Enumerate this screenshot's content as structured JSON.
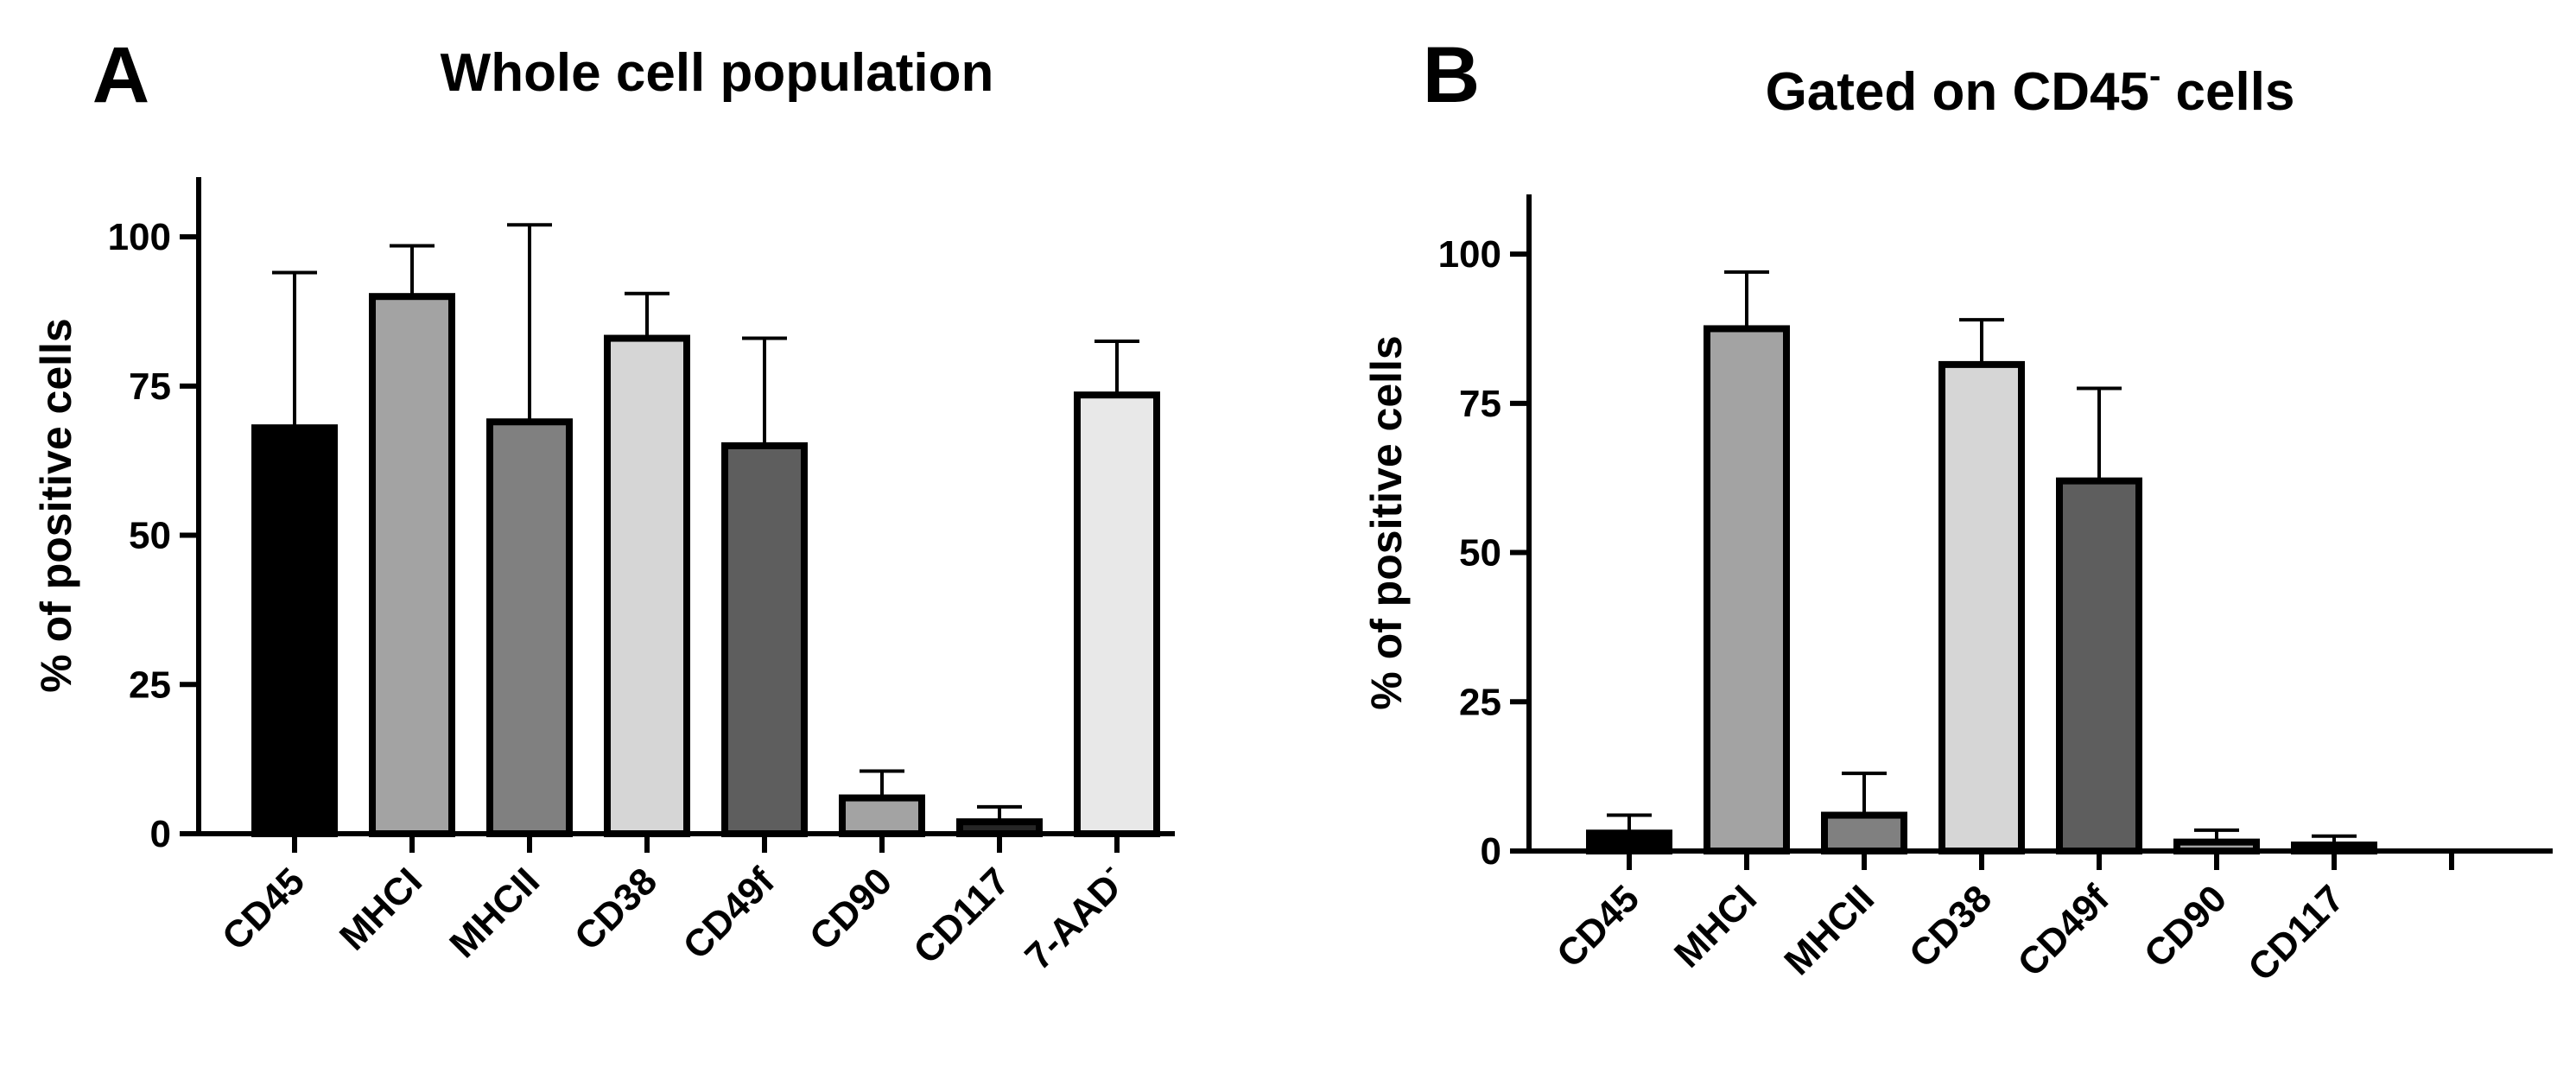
{
  "chart_data": [
    {
      "type": "bar",
      "panel_label": "A",
      "title": "Whole cell population",
      "xlabel": "",
      "ylabel": "% of positive cells",
      "ylim": [
        0,
        110
      ],
      "yticks": [
        "0",
        "25",
        "50",
        "75",
        "100"
      ],
      "categories": [
        "CD45",
        "MHCI",
        "MHCII",
        "CD38",
        "CD49f",
        "CD90",
        "CD117",
        "7-AAD"
      ],
      "category_superscripts": [
        "",
        "",
        "",
        "",
        "",
        "",
        "",
        "-"
      ],
      "values": [
        68,
        90,
        69,
        83,
        65,
        6,
        2,
        73.5
      ],
      "error_upper": [
        94,
        98.5,
        102,
        90.5,
        83,
        10.5,
        4.5,
        82.5
      ],
      "bar_colors": [
        "#000000",
        "#a3a3a3",
        "#808080",
        "#d6d6d6",
        "#5e5e5e",
        "#a3a3a3",
        "#262626",
        "#e8e8e8"
      ],
      "grid": false
    },
    {
      "type": "bar",
      "panel_label": "B",
      "title": "Gated on CD45",
      "title_superscript": "-",
      "title_suffix": " cells",
      "xlabel": "",
      "ylabel": "% of positive cells",
      "ylim": [
        0,
        110
      ],
      "yticks": [
        "0",
        "25",
        "50",
        "75",
        "100"
      ],
      "categories": [
        "CD45",
        "MHCI",
        "MHCII",
        "CD38",
        "CD49f",
        "CD90",
        "CD117"
      ],
      "category_superscripts": [
        "",
        "",
        "",
        "",
        "",
        "",
        ""
      ],
      "values": [
        3,
        87.5,
        6,
        81.5,
        62,
        1.5,
        1
      ],
      "error_upper": [
        6,
        97,
        13,
        89,
        77.5,
        3.5,
        2.5
      ],
      "bar_colors": [
        "#000000",
        "#a3a3a3",
        "#808080",
        "#d6d6d6",
        "#5e5e5e",
        "#a3a3a3",
        "#262626"
      ],
      "extra_slots": 1,
      "grid": false
    }
  ]
}
